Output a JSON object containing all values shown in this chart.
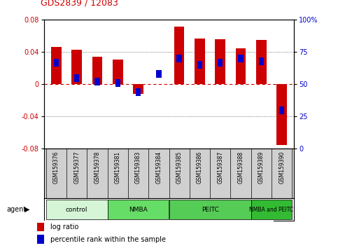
{
  "title": "GDS2839 / 12083",
  "samples": [
    "GSM159376",
    "GSM159377",
    "GSM159378",
    "GSM159381",
    "GSM159383",
    "GSM159384",
    "GSM159385",
    "GSM159386",
    "GSM159387",
    "GSM159388",
    "GSM159389",
    "GSM159390"
  ],
  "log_ratio": [
    0.046,
    0.043,
    0.034,
    0.031,
    -0.012,
    0.0,
    0.072,
    0.057,
    0.056,
    0.045,
    0.055,
    -0.075
  ],
  "percentile_pct": [
    67,
    55,
    52,
    51,
    44,
    58,
    70,
    65,
    67,
    70,
    68,
    30
  ],
  "groups": [
    {
      "label": "control",
      "start": 0,
      "end": 3,
      "color": "#d6f5d6"
    },
    {
      "label": "NMBA",
      "start": 3,
      "end": 6,
      "color": "#66dd66"
    },
    {
      "label": "PEITC",
      "start": 6,
      "end": 10,
      "color": "#55cc55"
    },
    {
      "label": "NMBA and PEITC",
      "start": 10,
      "end": 12,
      "color": "#33bb33"
    }
  ],
  "bar_color_red": "#cc0000",
  "bar_color_blue": "#0000cc",
  "ylim_left": [
    -0.08,
    0.08
  ],
  "ylim_right": [
    0,
    100
  ],
  "yticks_left": [
    -0.08,
    -0.04,
    0.0,
    0.04,
    0.08
  ],
  "yticks_right": [
    0,
    25,
    50,
    75,
    100
  ],
  "bar_width": 0.5,
  "blue_bar_width": 0.25,
  "background_color": "#ffffff",
  "label_bg": "#d0d0d0",
  "grid_color": "#555555",
  "zero_line_color": "#cc0000",
  "agent_label": "agent",
  "legend_red": "log ratio",
  "legend_blue": "percentile rank within the sample"
}
